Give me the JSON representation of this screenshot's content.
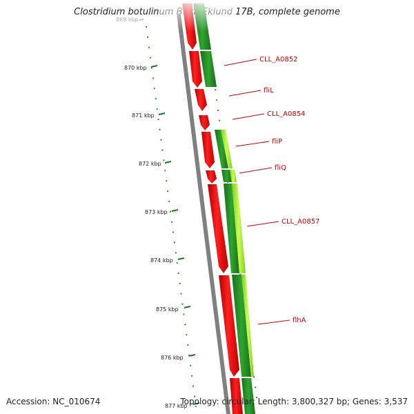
{
  "title": "Clostridium botulinum B str. Eklund 17B, complete genome",
  "accession": "Accession: NC_010674",
  "topology": "Topology: circular; Length: 3,800,327 bp; Genes: 3,537",
  "kbp_labels": [
    "869 kbp",
    "870 kbp",
    "871 kbp",
    "872 kbp",
    "873 kbp",
    "874 kbp",
    "875 kbp",
    "876 kbp",
    "877 kbp"
  ],
  "gene_labels": [
    "CLL_A0852",
    "fliL",
    "CLL_A0854",
    "fliP",
    "fliQ",
    "CLL_A0857",
    "flhA"
  ],
  "colors": {
    "forward_cds": "#ff0000",
    "reverse_cds": "#228b22",
    "highlight_cds": "#adff2f",
    "backbone": "#808080",
    "label": "#cc0000",
    "tick": "#1a7a1a"
  },
  "icons": {}
}
